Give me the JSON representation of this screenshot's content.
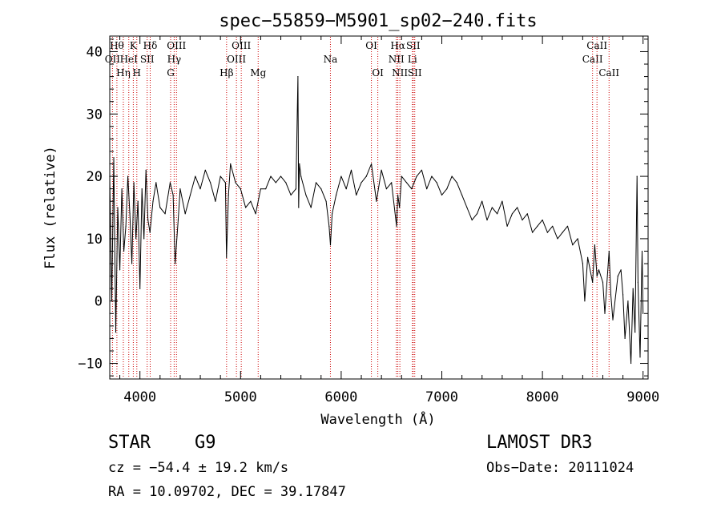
{
  "chart_data": {
    "type": "line",
    "title": "spec−55859−M5901_sp02−240.fits",
    "xlabel": "Wavelength (Å)",
    "ylabel": "Flux (relative)",
    "xlim": [
      3700,
      9050
    ],
    "ylim": [
      -12.5,
      42.5
    ],
    "xticks": [
      4000,
      5000,
      6000,
      7000,
      8000,
      9000
    ],
    "yticks": [
      -10,
      0,
      10,
      20,
      30,
      40
    ],
    "series": [
      {
        "name": "flux",
        "x": [
          3700,
          3720,
          3740,
          3760,
          3780,
          3800,
          3820,
          3840,
          3860,
          3880,
          3900,
          3920,
          3940,
          3960,
          3980,
          4000,
          4020,
          4040,
          4060,
          4080,
          4100,
          4130,
          4160,
          4200,
          4250,
          4300,
          4330,
          4350,
          4380,
          4400,
          4450,
          4500,
          4550,
          4600,
          4650,
          4700,
          4750,
          4800,
          4850,
          4860,
          4880,
          4900,
          4950,
          5000,
          5050,
          5100,
          5150,
          5200,
          5250,
          5300,
          5350,
          5400,
          5450,
          5500,
          5550,
          5570,
          5577,
          5585,
          5600,
          5650,
          5700,
          5750,
          5800,
          5850,
          5880,
          5893,
          5910,
          5950,
          6000,
          6050,
          6100,
          6150,
          6200,
          6250,
          6300,
          6350,
          6400,
          6450,
          6500,
          6550,
          6563,
          6580,
          6600,
          6650,
          6700,
          6750,
          6800,
          6850,
          6900,
          6950,
          7000,
          7050,
          7100,
          7150,
          7200,
          7250,
          7300,
          7350,
          7400,
          7450,
          7500,
          7550,
          7600,
          7650,
          7700,
          7750,
          7800,
          7850,
          7900,
          7950,
          8000,
          8050,
          8100,
          8150,
          8200,
          8250,
          8300,
          8350,
          8400,
          8420,
          8450,
          8498,
          8520,
          8542,
          8560,
          8600,
          8620,
          8662,
          8680,
          8700,
          8750,
          8780,
          8800,
          8820,
          8850,
          8880,
          8900,
          8920,
          8940,
          8950,
          8970,
          8990,
          9000
        ],
        "y": [
          20,
          0,
          23,
          -5,
          15,
          5,
          18,
          8,
          12,
          20,
          14,
          6,
          19,
          10,
          16,
          2,
          18,
          10,
          21,
          13,
          11,
          16,
          19,
          15,
          14,
          19,
          17,
          6,
          13,
          18,
          14,
          17,
          20,
          18,
          21,
          19,
          16,
          20,
          19,
          7,
          17,
          22,
          19,
          18,
          15,
          16,
          14,
          18,
          18,
          20,
          19,
          20,
          19,
          17,
          18,
          36,
          15,
          22,
          20,
          17,
          15,
          19,
          18,
          16,
          12,
          9,
          14,
          17,
          20,
          18,
          21,
          17,
          19,
          20,
          22,
          16,
          21,
          18,
          19,
          12,
          17,
          15,
          20,
          19,
          18,
          20,
          21,
          18,
          20,
          19,
          17,
          18,
          20,
          19,
          17,
          15,
          13,
          14,
          16,
          13,
          15,
          14,
          16,
          12,
          14,
          15,
          13,
          14,
          11,
          12,
          13,
          11,
          12,
          10,
          11,
          12,
          9,
          10,
          6,
          0,
          7,
          3,
          9,
          4,
          5,
          3,
          -2,
          8,
          1,
          -3,
          4,
          5,
          1,
          -6,
          0,
          -10,
          2,
          -5,
          20,
          3,
          -9,
          8,
          -2
        ]
      }
    ],
    "lines": [
      {
        "name": "OII",
        "x": 3727,
        "row": 1
      },
      {
        "name": "Hη",
        "x": 3835,
        "row": 2
      },
      {
        "name": "Hθ",
        "x": 3771,
        "row": 0
      },
      {
        "name": "HeI",
        "x": 3889,
        "row": 1
      },
      {
        "name": "K",
        "x": 3934,
        "row": 0
      },
      {
        "name": "H",
        "x": 3969,
        "row": 2
      },
      {
        "name": "SII",
        "x": 4072,
        "row": 1
      },
      {
        "name": "Hδ",
        "x": 4102,
        "row": 0
      },
      {
        "name": "G",
        "x": 4305,
        "row": 2
      },
      {
        "name": "Hγ",
        "x": 4340,
        "row": 1
      },
      {
        "name": "OIII",
        "x": 4363,
        "row": 0
      },
      {
        "name": "Hβ",
        "x": 4861,
        "row": 2
      },
      {
        "name": "OIII",
        "x": 4959,
        "row": 1
      },
      {
        "name": "OIII",
        "x": 5007,
        "row": 0
      },
      {
        "name": "Mg",
        "x": 5175,
        "row": 2
      },
      {
        "name": "Na",
        "x": 5893,
        "row": 1
      },
      {
        "name": "OI",
        "x": 6300,
        "row": 0
      },
      {
        "name": "OI",
        "x": 6364,
        "row": 2
      },
      {
        "name": "NII",
        "x": 6548,
        "row": 1
      },
      {
        "name": "Hα",
        "x": 6563,
        "row": 0
      },
      {
        "name": "NII",
        "x": 6583,
        "row": 2
      },
      {
        "name": "Li",
        "x": 6708,
        "row": 1
      },
      {
        "name": "SII",
        "x": 6716,
        "row": 0
      },
      {
        "name": "SII",
        "x": 6731,
        "row": 2
      },
      {
        "name": "CaII",
        "x": 8498,
        "row": 1
      },
      {
        "name": "CaII",
        "x": 8542,
        "row": 0
      },
      {
        "name": "CaII",
        "x": 8662,
        "row": 2
      }
    ]
  },
  "info": {
    "object_class": "STAR",
    "subclass": "G9",
    "survey": "LAMOST DR3",
    "redshift": "cz = −54.4 ± 19.2 km/s",
    "obs_date": "Obs−Date: 20111024",
    "coords": "RA =  10.09702, DEC =  39.17847"
  },
  "colors": {
    "line_marker": "#cc0000",
    "spectrum": "#000000"
  }
}
